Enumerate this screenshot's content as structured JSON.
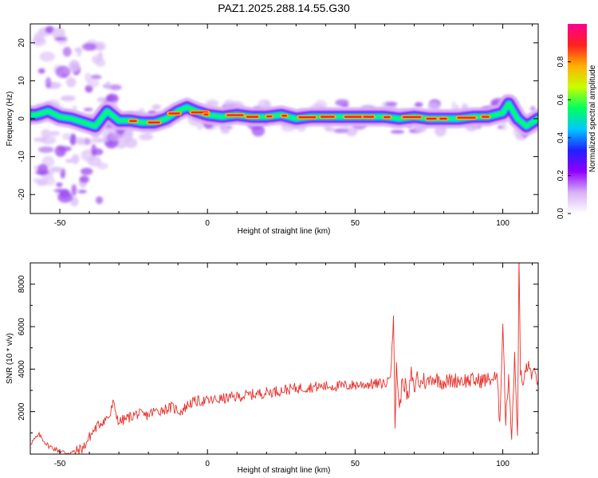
{
  "title": "PAZ1.2025.288.14.55.G30",
  "chart_data": [
    {
      "type": "heatmap",
      "xlabel": "Height of straight line (km)",
      "ylabel": "Frequency (Hz)",
      "xlim": [
        -60,
        112
      ],
      "ylim": [
        -25,
        25
      ],
      "xticks": [
        -50,
        0,
        50,
        100
      ],
      "yticks": [
        -20,
        -10,
        0,
        10,
        20
      ],
      "colorbar": {
        "label": "Normalized spectral amplitude",
        "range": [
          0,
          1
        ],
        "ticks": [
          "0.0",
          "0.2",
          "0.4",
          "0.6",
          "0.8"
        ],
        "colormap": [
          "#ffffff",
          "#d8b0f4",
          "#9000ff",
          "#2020ff",
          "#00c8ff",
          "#00ff60",
          "#c8ff00",
          "#ffb000",
          "#ff2020",
          "#ff0090"
        ]
      },
      "ridge": {
        "height_km": [
          -58,
          -54,
          -50,
          -46,
          -42,
          -38,
          -34,
          -30,
          -26,
          -22,
          -18,
          -14,
          -10,
          -7,
          -4,
          0,
          5,
          10,
          15,
          20,
          25,
          30,
          35,
          40,
          45,
          50,
          55,
          60,
          65,
          70,
          75,
          80,
          85,
          90,
          95,
          100,
          102,
          105,
          108,
          112
        ],
        "frequency_hz": [
          1,
          2,
          0.5,
          0,
          -1,
          -2,
          2,
          -0.5,
          -0.5,
          -1,
          -1,
          0,
          2,
          3,
          2,
          1,
          0.5,
          1,
          0.5,
          0.5,
          1,
          0,
          0.5,
          0.5,
          0.5,
          0.5,
          0.5,
          0.5,
          0,
          0.5,
          0,
          0,
          0,
          0.5,
          0.5,
          1.5,
          4,
          0,
          -2,
          0
        ]
      }
    },
    {
      "type": "line",
      "xlabel": "Height of straight line (km)",
      "ylabel": "SNR (10 * v/v)",
      "xlim": [
        -60,
        112
      ],
      "ylim": [
        0,
        9000
      ],
      "xticks": [
        -50,
        0,
        50,
        100
      ],
      "yticks": [
        2000,
        4000,
        6000,
        8000
      ],
      "color": "#e8302a",
      "series": [
        {
          "x": [
            -60,
            -57,
            -54,
            -51,
            -48,
            -45,
            -42,
            -40,
            -38,
            -36,
            -33,
            -32,
            -30,
            -27,
            -24,
            -21,
            -18,
            -15,
            -12,
            -9,
            -6,
            -3,
            0,
            5,
            10,
            15,
            20,
            25,
            30,
            35,
            40,
            45,
            50,
            55,
            58,
            61,
            62,
            63,
            63.5,
            64,
            65,
            66,
            67,
            68,
            69,
            70,
            71,
            72,
            73,
            74,
            76,
            80,
            85,
            90,
            95,
            98,
            99,
            100,
            101,
            102,
            103,
            104,
            105,
            105.5,
            106,
            107,
            108,
            110,
            112
          ],
          "y": [
            500,
            900,
            400,
            200,
            50,
            100,
            300,
            800,
            1200,
            1500,
            1800,
            2400,
            1500,
            1700,
            1900,
            1800,
            2000,
            2100,
            2200,
            2000,
            2400,
            2500,
            2500,
            2600,
            2700,
            2800,
            2900,
            3000,
            3100,
            3150,
            3200,
            3200,
            3250,
            3300,
            3300,
            3350,
            4000,
            6500,
            1000,
            4300,
            2000,
            3500,
            3200,
            2500,
            3800,
            3000,
            3700,
            3200,
            3600,
            3300,
            3600,
            3400,
            3500,
            3450,
            3500,
            3600,
            1500,
            6300,
            1500,
            3800,
            800,
            4500,
            1000,
            9000,
            3800,
            3200,
            4200,
            3800,
            3500
          ]
        }
      ]
    }
  ]
}
